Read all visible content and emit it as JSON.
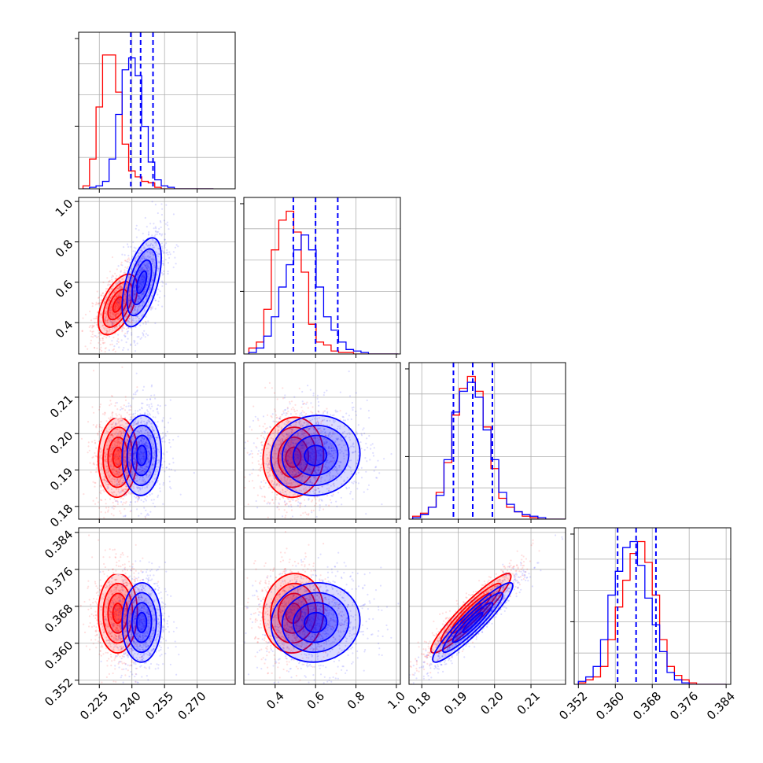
{
  "chart_data": {
    "type": "corner",
    "description_free": true,
    "parameters": [
      {
        "range": [
          0.2155,
          0.2875
        ],
        "ticks": [
          "0.225",
          "0.240",
          "0.255",
          "0.270"
        ],
        "tick_values": [
          0.225,
          0.24,
          0.255,
          0.27
        ]
      },
      {
        "range": [
          0.245,
          1.02
        ],
        "ticks": [
          "0.4",
          "0.6",
          "0.8",
          "1.0"
        ],
        "tick_values": [
          0.4,
          0.6,
          0.8,
          1.0
        ]
      },
      {
        "range": [
          0.1765,
          0.2195
        ],
        "ticks": [
          "0.18",
          "0.19",
          "0.20",
          "0.21"
        ],
        "tick_values": [
          0.18,
          0.19,
          0.2,
          0.21
        ]
      },
      {
        "range": [
          0.3511,
          0.385
        ],
        "ticks": [
          "0.352",
          "0.360",
          "0.368",
          "0.376",
          "0.384"
        ],
        "tick_values": [
          0.352,
          0.36,
          0.368,
          0.376,
          0.384
        ]
      }
    ],
    "series": [
      {
        "color": "#ff0000",
        "means": [
          0.2335,
          0.49,
          0.1935,
          0.3665
        ],
        "sigmas": [
          0.0045,
          0.075,
          0.0055,
          0.0043
        ],
        "histograms": [
          {
            "edges_from": 0.2175,
            "bin": 0.003,
            "counts": [
              2,
              20,
              55,
              90,
              90,
              65,
              30,
              12,
              8,
              5,
              4,
              1,
              0,
              0,
              0,
              0,
              0,
              0,
              0,
              0
            ]
          },
          {
            "edges_from": 0.27,
            "bin": 0.037,
            "counts": [
              4,
              8,
              30,
              70,
              90,
              96,
              82,
              55,
              20,
              8,
              6,
              2,
              1,
              1,
              0,
              0,
              0,
              0,
              0,
              0
            ]
          },
          {
            "edges_from": 0.1775,
            "bin": 0.00215,
            "counts": [
              2,
              4,
              8,
              18,
              38,
              70,
              88,
              96,
              86,
              62,
              34,
              14,
              8,
              5,
              2,
              1,
              0,
              0,
              0,
              0
            ]
          },
          {
            "edges_from": 0.352,
            "bin": 0.0016,
            "counts": [
              1,
              3,
              5,
              12,
              30,
              52,
              70,
              88,
              96,
              82,
              60,
              30,
              12,
              6,
              3,
              1,
              0,
              0,
              0,
              0
            ]
          }
        ]
      },
      {
        "color": "#0000ff",
        "means": [
          0.2445,
          0.6,
          0.194,
          0.3645
        ],
        "sigmas": [
          0.0045,
          0.11,
          0.0055,
          0.0043
        ],
        "histograms": [
          {
            "edges_from": 0.2175,
            "bin": 0.003,
            "counts": [
              0,
              1,
              2,
              5,
              20,
              50,
              80,
              88,
              76,
              42,
              18,
              6,
              2,
              1,
              0,
              0,
              0,
              0,
              0,
              0
            ]
          },
          {
            "edges_from": 0.27,
            "bin": 0.037,
            "counts": [
              1,
              4,
              12,
              25,
              45,
              60,
              70,
              80,
              70,
              45,
              25,
              16,
              8,
              3,
              2,
              1,
              0,
              0,
              0,
              0
            ]
          },
          {
            "edges_from": 0.1775,
            "bin": 0.00215,
            "counts": [
              1,
              3,
              8,
              16,
              40,
              72,
              86,
              92,
              82,
              60,
              40,
              18,
              10,
              5,
              3,
              2,
              1,
              0,
              0,
              0
            ]
          },
          {
            "edges_from": 0.352,
            "bin": 0.0016,
            "counts": [
              2,
              5,
              12,
              30,
              60,
              76,
              92,
              96,
              80,
              58,
              40,
              22,
              8,
              3,
              1,
              0,
              0,
              0,
              0,
              0
            ]
          }
        ]
      }
    ],
    "quantiles": [
      [
        0.2395,
        0.244,
        0.2497
      ],
      [
        0.49,
        0.6,
        0.71
      ],
      [
        0.1887,
        0.194,
        0.1994
      ],
      [
        0.3605,
        0.3645,
        0.3688
      ]
    ],
    "quantile_color": "#0000ff",
    "correlations": {
      "1-0": 0.55,
      "2-0": 0.05,
      "2-1": 0.05,
      "3-0": 0.02,
      "3-1": 0.05,
      "3-2": 0.93
    },
    "contour_levels_sigma": [
      0.5,
      1.0,
      1.5,
      2.0
    ],
    "grid": true,
    "legend": "none"
  }
}
